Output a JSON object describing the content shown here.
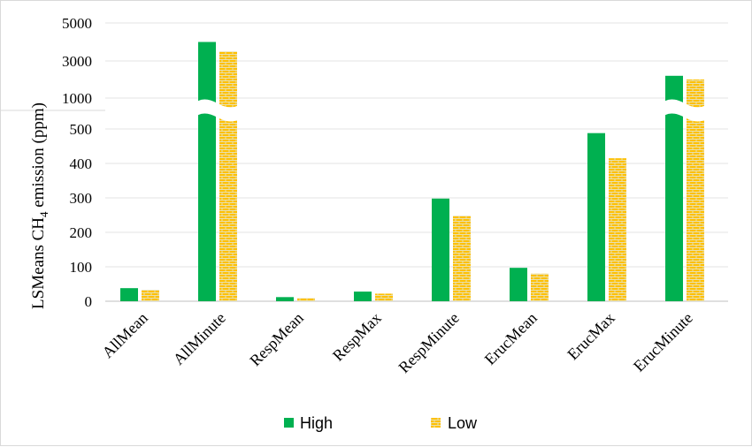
{
  "chart_data": {
    "type": "bar",
    "ylabel_main": "LSMeans CH",
    "ylabel_sub": "4",
    "ylabel_tail": " emission (ppm)",
    "categories": [
      "AllMean",
      "AllMinute",
      "RespMean",
      "RespMax",
      "RespMinute",
      "ErucMean",
      "ErucMax",
      "ErucMinute"
    ],
    "series": [
      {
        "name": "High",
        "color": "#00b050",
        "pattern": "solid",
        "values": [
          38,
          4000,
          12,
          28,
          298,
          97,
          488,
          2200
        ]
      },
      {
        "name": "Low",
        "color": "#ffc000",
        "pattern": "brick",
        "values": [
          33,
          3500,
          9,
          22,
          248,
          80,
          415,
          2000
        ]
      }
    ],
    "yticks_lower": [
      "0",
      "100",
      "200",
      "300",
      "400",
      "500"
    ],
    "yticks_upper": [
      "1000",
      "3000",
      "5000"
    ],
    "axis_break": "between 500 and 1000",
    "ylim": [
      0,
      5000
    ],
    "grid": true,
    "legend_position": "bottom"
  }
}
